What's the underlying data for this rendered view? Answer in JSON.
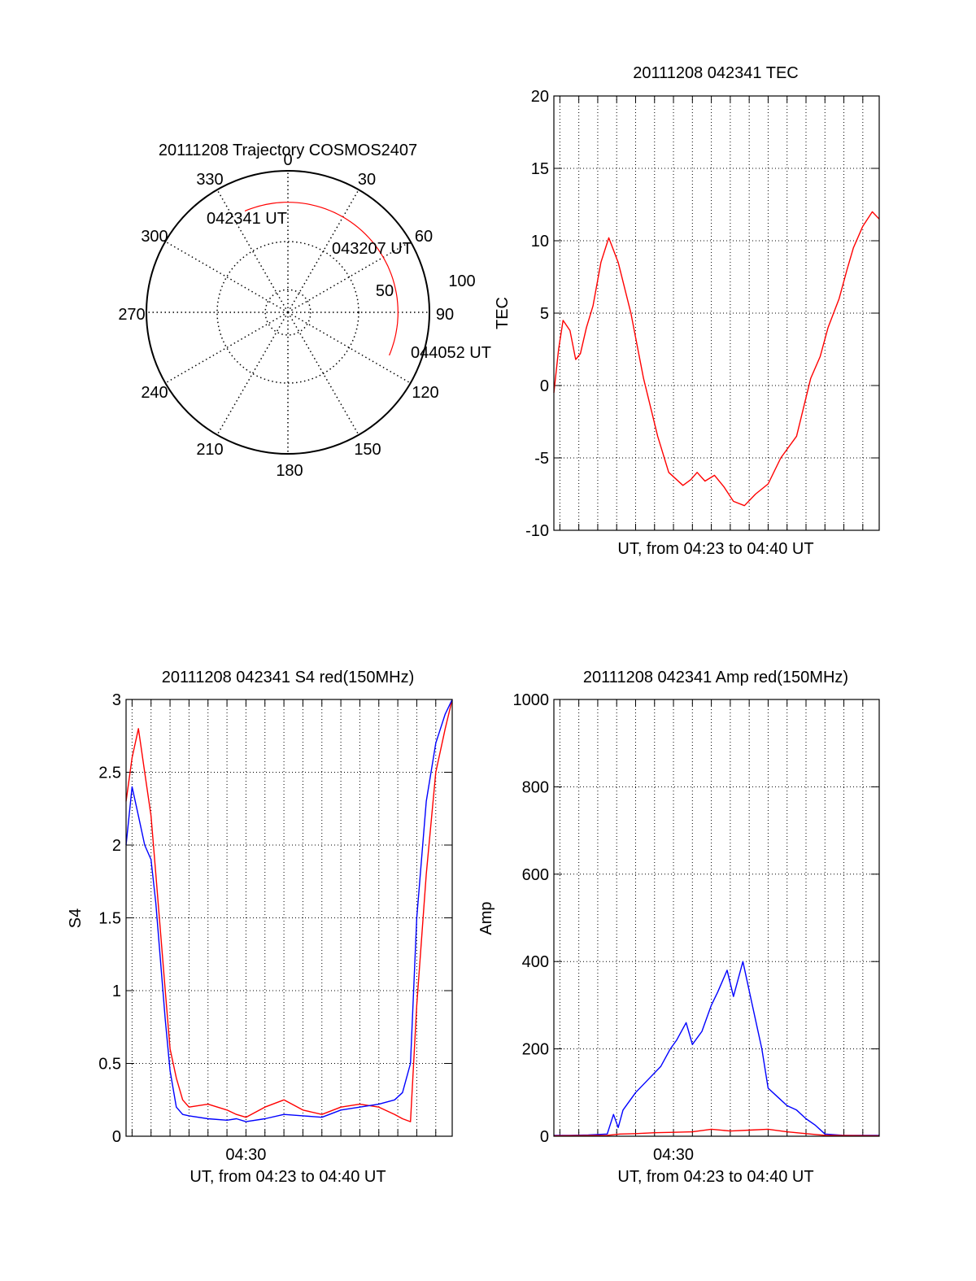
{
  "colors": {
    "red": "#ff0000",
    "blue": "#0000ff",
    "axis": "#000000"
  },
  "chart_data": [
    {
      "id": "polar",
      "type": "polar-trajectory",
      "title": "20111208 Trajectory COSMOS2407",
      "azimuth_labels": [
        "0",
        "30",
        "60",
        "90",
        "120",
        "150",
        "180",
        "210",
        "240",
        "270",
        "300",
        "330"
      ],
      "radius_labels": [
        "50",
        "100"
      ],
      "trajectory": {
        "azimuth_deg": [
          -23,
          0,
          30,
          60,
          90,
          113
        ],
        "elevation_deg": [
          20,
          20,
          20,
          20,
          20,
          20
        ]
      },
      "annotations": [
        "042341 UT",
        "043207 UT",
        "044052 UT"
      ]
    },
    {
      "id": "tec",
      "type": "line",
      "title": "20111208 042341 TEC",
      "xlabel": "UT, from 04:23 to 04:40 UT",
      "ylabel": "TEC",
      "x_range": [
        "04:23:41",
        "04:40:52"
      ],
      "ylim": [
        -10,
        20
      ],
      "yticks": [
        "-10",
        "-5",
        "0",
        "5",
        "10",
        "15",
        "20"
      ],
      "xticks": [],
      "grid": true,
      "series": [
        {
          "color": "#ff0000",
          "x": [
            "04:23:41",
            "04:23:56",
            "04:24:10",
            "04:24:32",
            "04:24:50",
            "04:25:05",
            "04:25:24",
            "04:25:45",
            "04:26:10",
            "04:26:35",
            "04:27:05",
            "04:27:45",
            "04:28:25",
            "04:29:10",
            "04:29:45",
            "04:30:30",
            "04:30:55",
            "04:31:15",
            "04:31:40",
            "04:32:10",
            "04:32:40",
            "04:33:10",
            "04:33:45",
            "04:34:20",
            "04:35:00",
            "04:35:40",
            "04:36:30",
            "04:37:15",
            "04:37:45",
            "04:38:10",
            "04:38:45",
            "04:39:10",
            "04:39:30",
            "04:40:00",
            "04:40:30",
            "04:40:52"
          ],
          "y": [
            -0.5,
            2.5,
            4.5,
            3.8,
            1.8,
            2.2,
            4.0,
            5.5,
            8.5,
            10.2,
            8.5,
            5.0,
            0.5,
            -3.5,
            -6.0,
            -6.9,
            -6.5,
            -6.0,
            -6.6,
            -6.2,
            -7.0,
            -8.0,
            -8.3,
            -7.5,
            -6.8,
            -5.0,
            -3.5,
            0.5,
            2.0,
            4.0,
            6.0,
            8.0,
            9.5,
            11.0,
            12.0,
            11.5
          ]
        }
      ]
    },
    {
      "id": "s4",
      "type": "line",
      "title": "20111208 042341 S4 red(150MHz)",
      "xlabel": "UT, from 04:23 to 04:40 UT",
      "ylabel": "S4",
      "x_range": [
        "04:23:41",
        "04:40:52"
      ],
      "ylim": [
        0,
        3
      ],
      "yticks": [
        "0",
        "0.5",
        "1",
        "1.5",
        "2",
        "2.5",
        "3"
      ],
      "xticks": [
        "04:30"
      ],
      "grid": true,
      "series": [
        {
          "color": "#ff0000",
          "x": [
            "04:23:41",
            "04:24:00",
            "04:24:20",
            "04:24:40",
            "04:25:00",
            "04:25:15",
            "04:25:30",
            "04:25:45",
            "04:26:00",
            "04:26:20",
            "04:26:40",
            "04:27:00",
            "04:28:00",
            "04:29:00",
            "04:29:30",
            "04:30:00",
            "04:31:00",
            "04:32:00",
            "04:33:00",
            "04:34:00",
            "04:35:00",
            "04:36:00",
            "04:37:00",
            "04:37:50",
            "04:38:15",
            "04:38:40",
            "04:39:00",
            "04:39:30",
            "04:40:00",
            "04:40:30",
            "04:40:52"
          ],
          "y": [
            2.3,
            2.6,
            2.8,
            2.5,
            2.2,
            1.8,
            1.4,
            1.0,
            0.6,
            0.4,
            0.25,
            0.2,
            0.22,
            0.18,
            0.15,
            0.13,
            0.2,
            0.25,
            0.18,
            0.15,
            0.2,
            0.22,
            0.2,
            0.15,
            0.12,
            0.1,
            0.9,
            1.8,
            2.5,
            2.8,
            3.0
          ]
        },
        {
          "color": "#0000ff",
          "x": [
            "04:23:41",
            "04:24:00",
            "04:24:20",
            "04:24:40",
            "04:25:00",
            "04:25:15",
            "04:25:30",
            "04:25:45",
            "04:26:00",
            "04:26:20",
            "04:26:40",
            "04:27:00",
            "04:28:00",
            "04:29:00",
            "04:29:30",
            "04:30:00",
            "04:31:00",
            "04:32:00",
            "04:33:00",
            "04:34:00",
            "04:35:00",
            "04:36:00",
            "04:37:00",
            "04:37:50",
            "04:38:15",
            "04:38:40",
            "04:39:00",
            "04:39:30",
            "04:40:00",
            "04:40:30",
            "04:40:52"
          ],
          "y": [
            2.0,
            2.4,
            2.2,
            2.0,
            1.9,
            1.6,
            1.2,
            0.8,
            0.45,
            0.2,
            0.15,
            0.14,
            0.12,
            0.11,
            0.12,
            0.1,
            0.12,
            0.15,
            0.14,
            0.13,
            0.18,
            0.2,
            0.22,
            0.25,
            0.3,
            0.5,
            1.5,
            2.3,
            2.7,
            2.9,
            3.0
          ]
        }
      ]
    },
    {
      "id": "amp",
      "type": "line",
      "title": "20111208 042341 Amp red(150MHz)",
      "xlabel": "UT, from 04:23 to 04:40 UT",
      "ylabel": "Amp",
      "x_range": [
        "04:23:41",
        "04:40:52"
      ],
      "ylim": [
        0,
        1000
      ],
      "yticks": [
        "0",
        "200",
        "400",
        "600",
        "800",
        "1000"
      ],
      "xticks": [
        "04:30"
      ],
      "grid": true,
      "series": [
        {
          "color": "#0000ff",
          "x": [
            "04:23:41",
            "04:24:30",
            "04:25:30",
            "04:26:30",
            "04:26:50",
            "04:27:05",
            "04:27:20",
            "04:28:00",
            "04:28:40",
            "04:29:20",
            "04:29:50",
            "04:30:10",
            "04:30:40",
            "04:31:00",
            "04:31:30",
            "04:32:00",
            "04:32:20",
            "04:32:50",
            "04:33:10",
            "04:33:40",
            "04:34:10",
            "04:34:40",
            "04:35:00",
            "04:35:30",
            "04:36:00",
            "04:36:30",
            "04:37:00",
            "04:37:30",
            "04:38:00",
            "04:39:00",
            "04:40:00",
            "04:40:52"
          ],
          "y": [
            2,
            2,
            3,
            5,
            50,
            20,
            60,
            100,
            130,
            160,
            200,
            220,
            260,
            210,
            240,
            300,
            330,
            380,
            320,
            400,
            300,
            200,
            110,
            90,
            70,
            60,
            40,
            25,
            5,
            2,
            2,
            2
          ]
        },
        {
          "color": "#ff0000",
          "x": [
            "04:23:41",
            "04:26:30",
            "04:27:10",
            "04:28:00",
            "04:29:00",
            "04:30:00",
            "04:31:00",
            "04:32:00",
            "04:33:00",
            "04:34:00",
            "04:35:00",
            "04:36:00",
            "04:37:00",
            "04:38:00",
            "04:40:52"
          ],
          "y": [
            1,
            2,
            5,
            6,
            8,
            9,
            10,
            16,
            12,
            14,
            16,
            10,
            6,
            2,
            1
          ]
        }
      ]
    }
  ]
}
